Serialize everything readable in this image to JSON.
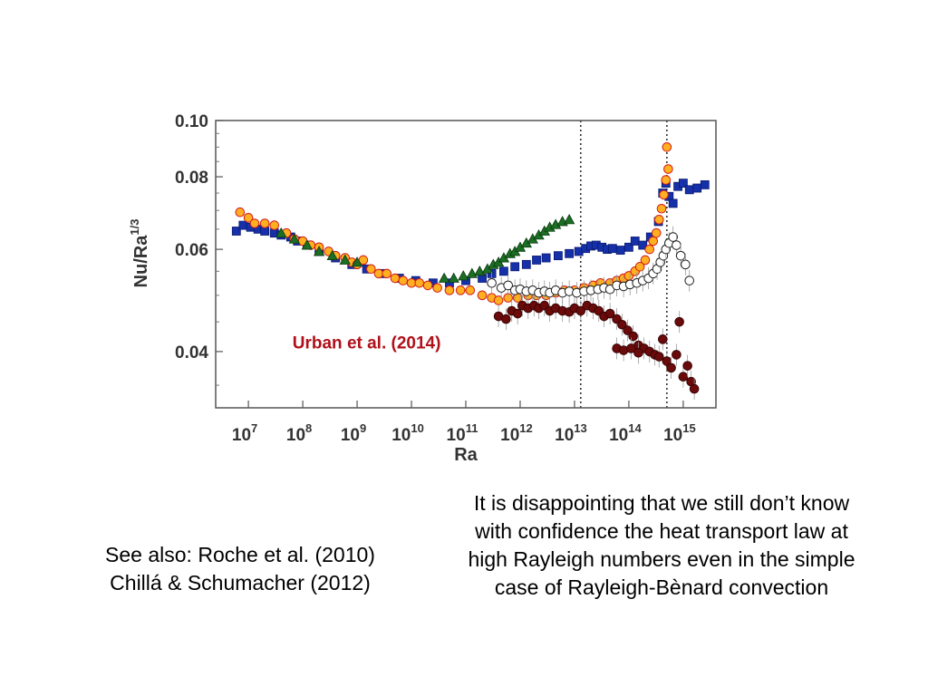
{
  "chart_data": {
    "type": "scatter",
    "xlabel": "Ra",
    "ylabel": "Nu/Ra",
    "ylabel_superscript": "1/3",
    "x_scale": "log",
    "y_scale": "log",
    "xlim": [
      2500000.0,
      4000000000000000.0
    ],
    "ylim": [
      0.032,
      0.1
    ],
    "x_ticks": [
      {
        "value": 10000000.0,
        "mantissa": "10",
        "exp": "7"
      },
      {
        "value": 100000000.0,
        "mantissa": "10",
        "exp": "8"
      },
      {
        "value": 1000000000.0,
        "mantissa": "10",
        "exp": "9"
      },
      {
        "value": 10000000000.0,
        "mantissa": "10",
        "exp": "10"
      },
      {
        "value": 100000000000.0,
        "mantissa": "10",
        "exp": "11"
      },
      {
        "value": 1000000000000.0,
        "mantissa": "10",
        "exp": "12"
      },
      {
        "value": 10000000000000.0,
        "mantissa": "10",
        "exp": "13"
      },
      {
        "value": 100000000000000.0,
        "mantissa": "10",
        "exp": "14"
      },
      {
        "value": 1000000000000000.0,
        "mantissa": "10",
        "exp": "15"
      }
    ],
    "y_ticks": [
      {
        "value": 0.04,
        "label": "0.04"
      },
      {
        "value": 0.06,
        "label": "0.06"
      },
      {
        "value": 0.08,
        "label": "0.08"
      },
      {
        "value": 0.1,
        "label": "0.10"
      }
    ],
    "vlines": [
      13000000000000.0,
      500000000000000.0
    ],
    "annotation": {
      "text": "Urban et al. (2014)",
      "x": 1500000000.0,
      "y": 0.0405,
      "color": "#b0101a"
    },
    "series": [
      {
        "marker": "square",
        "color": "#1530a8",
        "stroke": "#0a1a70",
        "points": [
          [
            6000000.0,
            0.0645
          ],
          [
            8000000.0,
            0.066
          ],
          [
            11000000.0,
            0.0655
          ],
          [
            15000000.0,
            0.065
          ],
          [
            20000000.0,
            0.0645
          ],
          [
            30000000.0,
            0.064
          ],
          [
            40000000.0,
            0.0635
          ],
          [
            60000000.0,
            0.063
          ],
          [
            80000000.0,
            0.062
          ],
          [
            120000000.0,
            0.061
          ],
          [
            200000000.0,
            0.0595
          ],
          [
            400000000.0,
            0.058
          ],
          [
            800000000.0,
            0.0565
          ],
          [
            1500000000.0,
            0.0555
          ],
          [
            3000000000.0,
            0.0545
          ],
          [
            6000000000.0,
            0.0535
          ],
          [
            12000000000.0,
            0.053
          ],
          [
            25000000000.0,
            0.0525
          ],
          [
            50000000000.0,
            0.0525
          ],
          [
            100000000000.0,
            0.053
          ],
          [
            200000000000.0,
            0.0535
          ],
          [
            300000000000.0,
            0.0545
          ],
          [
            500000000000.0,
            0.055
          ],
          [
            800000000000.0,
            0.056
          ],
          [
            1300000000000.0,
            0.0565
          ],
          [
            2000000000000.0,
            0.0575
          ],
          [
            3000000000000.0,
            0.058
          ],
          [
            5000000000000.0,
            0.0585
          ],
          [
            8000000000000.0,
            0.059
          ],
          [
            12000000000000.0,
            0.0595
          ],
          [
            16000000000000.0,
            0.0602
          ],
          [
            20000000000000.0,
            0.0608
          ],
          [
            25000000000000.0,
            0.061
          ],
          [
            32000000000000.0,
            0.0605
          ],
          [
            40000000000000.0,
            0.06
          ],
          [
            50000000000000.0,
            0.0602
          ],
          [
            70000000000000.0,
            0.0598
          ],
          [
            100000000000000.0,
            0.0605
          ],
          [
            130000000000000.0,
            0.062
          ],
          [
            180000000000000.0,
            0.061
          ],
          [
            250000000000000.0,
            0.063
          ],
          [
            350000000000000.0,
            0.067
          ],
          [
            420000000000000.0,
            0.075
          ],
          [
            480000000000000.0,
            0.078
          ],
          [
            550000000000000.0,
            0.074
          ],
          [
            650000000000000.0,
            0.072
          ],
          [
            800000000000000.0,
            0.077
          ],
          [
            1000000000000000.0,
            0.078
          ],
          [
            1300000000000000.0,
            0.076
          ],
          [
            1800000000000000.0,
            0.0765
          ],
          [
            2500000000000000.0,
            0.0775
          ]
        ]
      },
      {
        "marker": "circle",
        "color": "#ffb020",
        "stroke": "#d21a1a",
        "points": [
          [
            7000000.0,
            0.0695
          ],
          [
            10000000.0,
            0.068
          ],
          [
            13000000.0,
            0.0665
          ],
          [
            20000000.0,
            0.0665
          ],
          [
            30000000.0,
            0.066
          ],
          [
            50000000.0,
            0.064
          ],
          [
            70000000.0,
            0.0625
          ],
          [
            100000000.0,
            0.062
          ],
          [
            140000000.0,
            0.061
          ],
          [
            200000000.0,
            0.0605
          ],
          [
            300000000.0,
            0.0595
          ],
          [
            400000000.0,
            0.0585
          ],
          [
            600000000.0,
            0.058
          ],
          [
            800000000.0,
            0.057
          ],
          [
            1000000000.0,
            0.0565
          ],
          [
            1300000000.0,
            0.0575
          ],
          [
            1800000000.0,
            0.0555
          ],
          [
            2500000000.0,
            0.0545
          ],
          [
            3500000000.0,
            0.0545
          ],
          [
            5000000000.0,
            0.0535
          ],
          [
            7000000000.0,
            0.053
          ],
          [
            10000000000.0,
            0.0525
          ],
          [
            14000000000.0,
            0.0525
          ],
          [
            20000000000.0,
            0.052
          ],
          [
            30000000000.0,
            0.0515
          ],
          [
            50000000000.0,
            0.051
          ],
          [
            80000000000.0,
            0.051
          ],
          [
            120000000000.0,
            0.051
          ],
          [
            200000000000.0,
            0.05
          ],
          [
            300000000000.0,
            0.0495
          ],
          [
            400000000000.0,
            0.049
          ],
          [
            600000000000.0,
            0.0495
          ],
          [
            900000000000.0,
            0.0495
          ],
          [
            1400000000000.0,
            0.05
          ],
          [
            2000000000000.0,
            0.05
          ],
          [
            3000000000000.0,
            0.05
          ],
          [
            4500000000000.0,
            0.0505
          ],
          [
            6500000000000.0,
            0.051
          ],
          [
            10000000000000.0,
            0.051
          ],
          [
            15000000000000.0,
            0.0515
          ],
          [
            22000000000000.0,
            0.052
          ],
          [
            30000000000000.0,
            0.0525
          ],
          [
            45000000000000.0,
            0.0525
          ],
          [
            60000000000000.0,
            0.053
          ],
          [
            80000000000000.0,
            0.0535
          ],
          [
            100000000000000.0,
            0.054
          ],
          [
            130000000000000.0,
            0.055
          ],
          [
            160000000000000.0,
            0.056
          ],
          [
            200000000000000.0,
            0.0575
          ],
          [
            240000000000000.0,
            0.06
          ],
          [
            280000000000000.0,
            0.062
          ],
          [
            320000000000000.0,
            0.064
          ],
          [
            360000000000000.0,
            0.0675
          ],
          [
            400000000000000.0,
            0.0705
          ],
          [
            440000000000000.0,
            0.0745
          ],
          [
            480000000000000.0,
            0.079
          ],
          [
            500000000000000.0,
            0.09
          ],
          [
            530000000000000.0,
            0.0825
          ]
        ]
      },
      {
        "marker": "triangle",
        "color": "#1b6e23",
        "stroke": "#0b3a10",
        "points": [
          [
            40000000.0,
            0.064
          ],
          [
            70000000.0,
            0.0625
          ],
          [
            120000000.0,
            0.061
          ],
          [
            200000000.0,
            0.0595
          ],
          [
            350000000.0,
            0.0585
          ],
          [
            600000000.0,
            0.0575
          ],
          [
            1000000000.0,
            0.057
          ],
          [
            40000000000.0,
            0.0535
          ],
          [
            60000000000.0,
            0.0535
          ],
          [
            90000000000.0,
            0.054
          ],
          [
            130000000000.0,
            0.0545
          ],
          [
            180000000000.0,
            0.055
          ],
          [
            250000000000.0,
            0.0555
          ],
          [
            320000000000.0,
            0.0565
          ],
          [
            400000000000.0,
            0.057
          ],
          [
            500000000000.0,
            0.058
          ],
          [
            650000000000.0,
            0.059
          ],
          [
            800000000000.0,
            0.0595
          ],
          [
            1000000000000.0,
            0.0605
          ],
          [
            1300000000000.0,
            0.0615
          ],
          [
            1700000000000.0,
            0.0625
          ],
          [
            2200000000000.0,
            0.0635
          ],
          [
            2800000000000.0,
            0.0645
          ],
          [
            3500000000000.0,
            0.0655
          ],
          [
            4500000000000.0,
            0.0662
          ],
          [
            6000000000000.0,
            0.067
          ],
          [
            8000000000000.0,
            0.0675
          ]
        ]
      },
      {
        "marker": "circle",
        "color": "#ffffff",
        "stroke": "#222222",
        "points": [
          [
            300000000000.0,
            0.0525
          ],
          [
            450000000000.0,
            0.0515
          ],
          [
            600000000000.0,
            0.052
          ],
          [
            800000000000.0,
            0.051
          ],
          [
            1000000000000.0,
            0.0512
          ],
          [
            1300000000000.0,
            0.0508
          ],
          [
            1700000000000.0,
            0.051
          ],
          [
            2200000000000.0,
            0.0505
          ],
          [
            2800000000000.0,
            0.0508
          ],
          [
            3500000000000.0,
            0.0505
          ],
          [
            4500000000000.0,
            0.051
          ],
          [
            6000000000000.0,
            0.0505
          ],
          [
            8000000000000.0,
            0.0508
          ],
          [
            11000000000000.0,
            0.0505
          ],
          [
            15000000000000.0,
            0.0508
          ],
          [
            20000000000000.0,
            0.051
          ],
          [
            27000000000000.0,
            0.0512
          ],
          [
            35000000000000.0,
            0.0515
          ],
          [
            45000000000000.0,
            0.0512
          ],
          [
            60000000000000.0,
            0.052
          ],
          [
            80000000000000.0,
            0.0518
          ],
          [
            105000000000000.0,
            0.0522
          ],
          [
            140000000000000.0,
            0.0525
          ],
          [
            180000000000000.0,
            0.053
          ],
          [
            230000000000000.0,
            0.0535
          ],
          [
            280000000000000.0,
            0.0545
          ],
          [
            330000000000000.0,
            0.0555
          ],
          [
            380000000000000.0,
            0.057
          ],
          [
            430000000000000.0,
            0.0585
          ],
          [
            480000000000000.0,
            0.06
          ],
          [
            550000000000000.0,
            0.0615
          ],
          [
            650000000000000.0,
            0.063
          ],
          [
            750000000000000.0,
            0.061
          ],
          [
            900000000000000.0,
            0.0585
          ],
          [
            1100000000000000.0,
            0.0565
          ],
          [
            1300000000000000.0,
            0.053
          ]
        ]
      },
      {
        "marker": "circle",
        "color": "#6a0a0a",
        "stroke": "#3a0404",
        "points": [
          [
            400000000000.0,
            0.046
          ],
          [
            550000000000.0,
            0.0455
          ],
          [
            700000000000.0,
            0.047
          ],
          [
            900000000000.0,
            0.0465
          ],
          [
            1100000000000.0,
            0.048
          ],
          [
            1400000000000.0,
            0.0475
          ],
          [
            1800000000000.0,
            0.048
          ],
          [
            2200000000000.0,
            0.0475
          ],
          [
            2800000000000.0,
            0.048
          ],
          [
            3500000000000.0,
            0.047
          ],
          [
            4500000000000.0,
            0.0475
          ],
          [
            6000000000000.0,
            0.047
          ],
          [
            8000000000000.0,
            0.0468
          ],
          [
            10000000000000.0,
            0.0475
          ],
          [
            13000000000000.0,
            0.047
          ],
          [
            17000000000000.0,
            0.048
          ],
          [
            22000000000000.0,
            0.0475
          ],
          [
            28000000000000.0,
            0.047
          ],
          [
            35000000000000.0,
            0.046
          ],
          [
            45000000000000.0,
            0.0465
          ],
          [
            60000000000000.0,
            0.0455
          ],
          [
            75000000000000.0,
            0.0445
          ],
          [
            95000000000000.0,
            0.0435
          ],
          [
            120000000000000.0,
            0.0425
          ],
          [
            150000000000000.0,
            0.041
          ],
          [
            190000000000000.0,
            0.0405
          ],
          [
            240000000000000.0,
            0.04
          ],
          [
            300000000000000.0,
            0.0395
          ],
          [
            360000000000000.0,
            0.0392
          ],
          [
            420000000000000.0,
            0.042
          ],
          [
            500000000000000.0,
            0.0385
          ],
          [
            600000000000000.0,
            0.0375
          ],
          [
            750000000000000.0,
            0.0395
          ],
          [
            850000000000000.0,
            0.045
          ],
          [
            1000000000000000.0,
            0.0362
          ],
          [
            1200000000000000.0,
            0.0378
          ],
          [
            1400000000000000.0,
            0.0355
          ],
          [
            1600000000000000.0,
            0.0345
          ],
          [
            60000000000000.0,
            0.0405
          ],
          [
            80000000000000.0,
            0.0402
          ],
          [
            110000000000000.0,
            0.0405
          ],
          [
            150000000000000.0,
            0.0398
          ]
        ]
      }
    ]
  },
  "text_notes": {
    "quote_lines": [
      "It is disappointing that we still don’t know",
      "with confidence the heat transport law at",
      "high Rayleigh numbers even in the simple",
      "case of Rayleigh-Bènard convection"
    ],
    "see_also_lines": [
      "See also: Roche et al. (2010)",
      "Chillá & Schumacher (2012)"
    ]
  }
}
